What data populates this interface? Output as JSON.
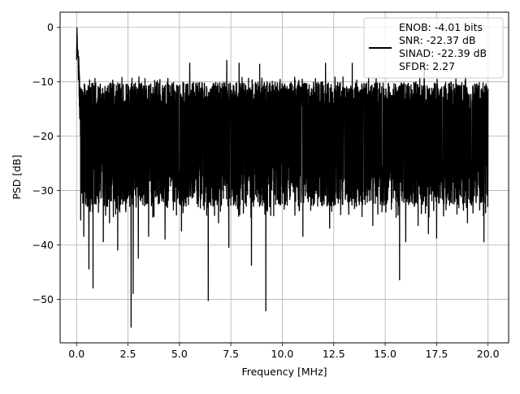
{
  "chart_data": {
    "type": "line",
    "title": "",
    "xlabel": "Frequency [MHz]",
    "ylabel": "PSD [dB]",
    "xlim": [
      -0.8,
      21.0
    ],
    "ylim": [
      -58.0,
      2.8
    ],
    "xticks": [
      0.0,
      2.5,
      5.0,
      7.5,
      10.0,
      12.5,
      15.0,
      17.5,
      20.0
    ],
    "xtick_labels": [
      "0.0",
      "2.5",
      "5.0",
      "7.5",
      "10.0",
      "12.5",
      "15.0",
      "17.5",
      "20.0"
    ],
    "yticks": [
      0,
      -10,
      -20,
      -30,
      -40,
      -50
    ],
    "ytick_labels": [
      "0",
      "−10",
      "−20",
      "−30",
      "−40",
      "−50"
    ],
    "grid": true,
    "legend_position": "upper-right",
    "legend_lines": [
      "ENOB: -4.01 bits",
      "SNR: -22.37 dB",
      "SINAD: -22.39 dB",
      "SFDR: 2.27"
    ],
    "series": [
      {
        "color": "#000000",
        "x_range": [
          0.0,
          20.0
        ],
        "peak": {
          "x": 0.02,
          "y": 0.0
        },
        "band_upper_typical": -12.5,
        "band_lower_typical": -29.0,
        "upper_spikes": [
          {
            "x": 4.3,
            "y": -6.5
          },
          {
            "x": 5.5,
            "y": -6.5
          },
          {
            "x": 7.3,
            "y": -6.0
          },
          {
            "x": 7.9,
            "y": -6.5
          },
          {
            "x": 8.9,
            "y": -6.7
          },
          {
            "x": 12.1,
            "y": -6.5
          },
          {
            "x": 13.4,
            "y": -6.5
          },
          {
            "x": 16.0,
            "y": -6.6
          },
          {
            "x": 16.9,
            "y": -6.3
          }
        ],
        "lower_spikes": [
          {
            "x": 0.2,
            "y": -35.5
          },
          {
            "x": 0.35,
            "y": -38.5
          },
          {
            "x": 0.6,
            "y": -44.5
          },
          {
            "x": 0.8,
            "y": -48.0
          },
          {
            "x": 1.3,
            "y": -39.5
          },
          {
            "x": 1.6,
            "y": -36.0
          },
          {
            "x": 2.0,
            "y": -41.0
          },
          {
            "x": 2.65,
            "y": -55.2
          },
          {
            "x": 2.75,
            "y": -49.0
          },
          {
            "x": 3.0,
            "y": -42.5
          },
          {
            "x": 3.5,
            "y": -38.5
          },
          {
            "x": 4.3,
            "y": -39.0
          },
          {
            "x": 5.1,
            "y": -37.5
          },
          {
            "x": 6.4,
            "y": -50.3
          },
          {
            "x": 6.9,
            "y": -36.0
          },
          {
            "x": 7.4,
            "y": -40.5
          },
          {
            "x": 8.5,
            "y": -43.8
          },
          {
            "x": 9.2,
            "y": -52.2
          },
          {
            "x": 11.0,
            "y": -38.5
          },
          {
            "x": 12.3,
            "y": -37.0
          },
          {
            "x": 13.6,
            "y": -33.0
          },
          {
            "x": 14.4,
            "y": -36.5
          },
          {
            "x": 15.7,
            "y": -46.5
          },
          {
            "x": 16.0,
            "y": -39.5
          },
          {
            "x": 16.6,
            "y": -36.5
          },
          {
            "x": 17.1,
            "y": -38.0
          },
          {
            "x": 17.5,
            "y": -38.8
          },
          {
            "x": 19.0,
            "y": -36.0
          },
          {
            "x": 19.8,
            "y": -39.5
          }
        ]
      }
    ]
  }
}
